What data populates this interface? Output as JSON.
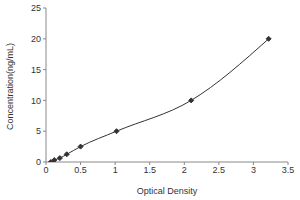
{
  "chart_data": {
    "type": "line",
    "x_label": "Optical Density",
    "y_label": "Concentration(ng/mL)",
    "series": [
      {
        "x": [
          0.07,
          0.12,
          0.2,
          0.3,
          0.5,
          1.02,
          2.1,
          3.22
        ],
        "values": [
          0,
          0.31,
          0.63,
          1.25,
          2.5,
          5,
          10,
          20
        ],
        "color": "#333333",
        "marker": "diamond",
        "line_style": "solid"
      }
    ],
    "xlim": [
      0,
      3.5
    ],
    "xticks": [
      0,
      0.5,
      1,
      1.5,
      2,
      2.5,
      3,
      3.5
    ],
    "ylim": [
      0,
      25
    ],
    "yticks": [
      0,
      5,
      10,
      15,
      20,
      25
    ],
    "grid": false
  }
}
